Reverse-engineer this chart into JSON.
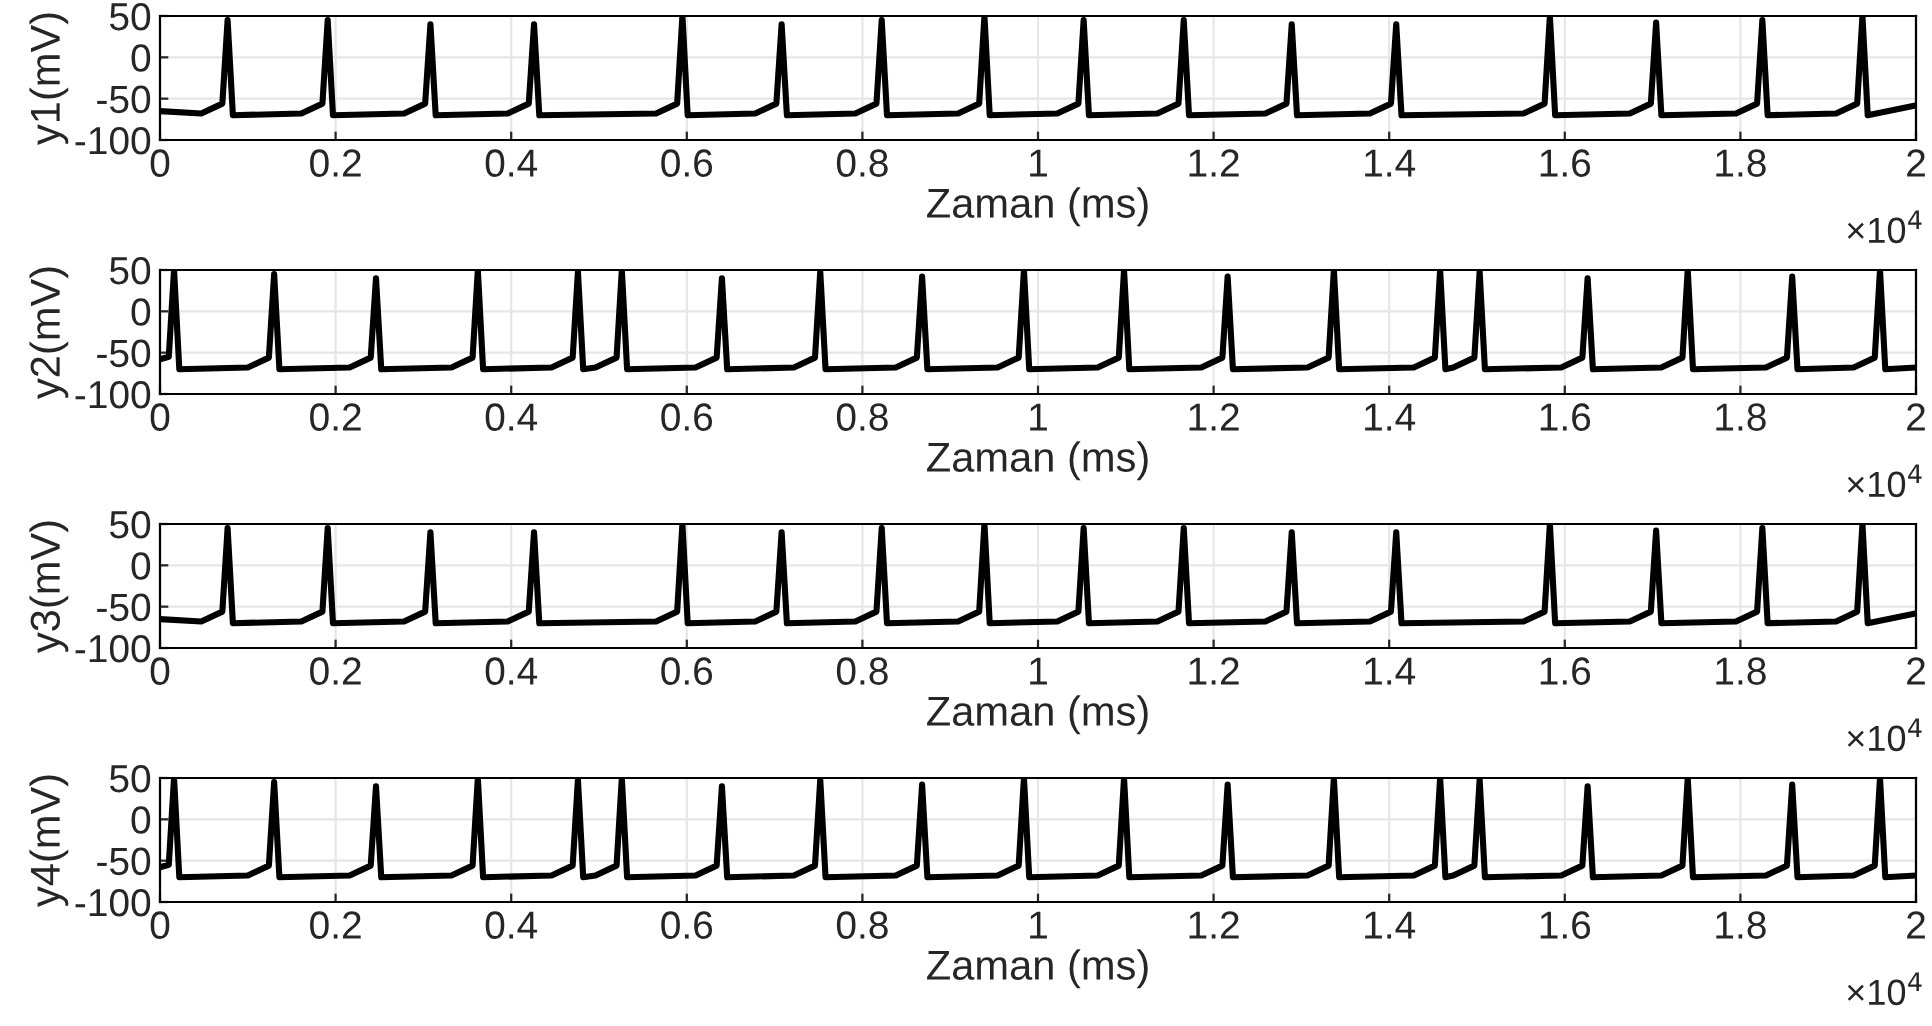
{
  "chart_data": [
    {
      "type": "line",
      "ylabel": "y1(mV)",
      "xlabel": "Zaman (ms)",
      "annotations": [
        "×10$^{4}$"
      ],
      "xlim": [
        0,
        2
      ],
      "ylim": [
        -100,
        50
      ],
      "yticks": [
        -100,
        -50,
        0,
        50
      ],
      "xticks": [
        0,
        0.2,
        0.4,
        0.6,
        0.8,
        1,
        1.2,
        1.4,
        1.6,
        1.8,
        2
      ],
      "grid": true,
      "series": [
        {
          "color": "#000000",
          "x": [
            0,
            0.047,
            0.071,
            0.077,
            0.083,
            0.161,
            0.185,
            0.191,
            0.197,
            0.278,
            0.302,
            0.308,
            0.314,
            0.396,
            0.42,
            0.426,
            0.432,
            0.565,
            0.589,
            0.595,
            0.601,
            0.678,
            0.702,
            0.708,
            0.714,
            0.792,
            0.816,
            0.822,
            0.828,
            0.909,
            0.933,
            0.939,
            0.945,
            1.022,
            1.046,
            1.052,
            1.058,
            1.136,
            1.16,
            1.166,
            1.172,
            1.259,
            1.283,
            1.289,
            1.295,
            1.378,
            1.402,
            1.408,
            1.414,
            1.553,
            1.577,
            1.583,
            1.589,
            1.674,
            1.698,
            1.704,
            1.71,
            1.795,
            1.819,
            1.825,
            1.831,
            1.909,
            1.933,
            1.939,
            1.945,
            2
          ],
          "values": [
            -65,
            -68,
            -56,
            45,
            -70,
            -68,
            -56,
            45,
            -70,
            -68,
            -56,
            40,
            -70,
            -68,
            -56,
            40,
            -70,
            -68,
            -56,
            50,
            -70,
            -68,
            -56,
            40,
            -70,
            -68,
            -56,
            45,
            -70,
            -68,
            -56,
            50,
            -70,
            -68,
            -56,
            45,
            -70,
            -68,
            -56,
            45,
            -70,
            -68,
            -56,
            40,
            -70,
            -68,
            -56,
            40,
            -70,
            -68,
            -56,
            50,
            -70,
            -68,
            -56,
            42,
            -70,
            -68,
            -56,
            45,
            -70,
            -68,
            -56,
            50,
            -70,
            -58
          ]
        }
      ]
    },
    {
      "type": "line",
      "ylabel": "y2(mV)",
      "xlabel": "Zaman (ms)",
      "annotations": [
        "×10$^{4}$"
      ],
      "xlim": [
        0,
        2
      ],
      "ylim": [
        -100,
        50
      ],
      "yticks": [
        -100,
        -50,
        0,
        50
      ],
      "xticks": [
        0,
        0.2,
        0.4,
        0.6,
        0.8,
        1,
        1.2,
        1.4,
        1.6,
        1.8,
        2
      ],
      "grid": true,
      "series": [
        {
          "color": "#000000",
          "x": [
            0,
            0.01,
            0.016,
            0.022,
            0.1,
            0.124,
            0.13,
            0.136,
            0.216,
            0.24,
            0.246,
            0.252,
            0.332,
            0.356,
            0.362,
            0.368,
            0.446,
            0.47,
            0.476,
            0.482,
            0.496,
            0.52,
            0.526,
            0.532,
            0.61,
            0.634,
            0.64,
            0.646,
            0.722,
            0.746,
            0.752,
            0.758,
            0.838,
            0.862,
            0.868,
            0.874,
            0.954,
            0.978,
            0.984,
            0.99,
            1.068,
            1.092,
            1.098,
            1.104,
            1.186,
            1.21,
            1.216,
            1.222,
            1.307,
            1.331,
            1.337,
            1.343,
            1.428,
            1.452,
            1.458,
            1.464,
            1.473,
            1.497,
            1.503,
            1.509,
            1.596,
            1.62,
            1.626,
            1.632,
            1.71,
            1.734,
            1.74,
            1.746,
            1.829,
            1.853,
            1.859,
            1.865,
            1.929,
            1.953,
            1.959,
            1.965,
            2
          ],
          "values": [
            -58,
            -55,
            50,
            -70,
            -68,
            -56,
            45,
            -70,
            -68,
            -56,
            40,
            -70,
            -68,
            -56,
            50,
            -70,
            -68,
            -56,
            48,
            -70,
            -68,
            -56,
            50,
            -70,
            -68,
            -56,
            40,
            -70,
            -68,
            -56,
            48,
            -70,
            -68,
            -56,
            42,
            -70,
            -68,
            -56,
            50,
            -70,
            -68,
            -56,
            50,
            -70,
            -68,
            -56,
            42,
            -70,
            -68,
            -56,
            50,
            -70,
            -68,
            -56,
            50,
            -70,
            -68,
            -56,
            48,
            -70,
            -68,
            -56,
            40,
            -70,
            -68,
            -56,
            50,
            -70,
            -68,
            -56,
            42,
            -70,
            -68,
            -56,
            50,
            -70,
            -68
          ]
        }
      ]
    },
    {
      "type": "line",
      "ylabel": "y3(mV)",
      "xlabel": "Zaman (ms)",
      "annotations": [
        "×10$^{4}$"
      ],
      "xlim": [
        0,
        2
      ],
      "ylim": [
        -100,
        50
      ],
      "yticks": [
        -100,
        -50,
        0,
        50
      ],
      "xticks": [
        0,
        0.2,
        0.4,
        0.6,
        0.8,
        1,
        1.2,
        1.4,
        1.6,
        1.8,
        2
      ],
      "grid": true,
      "series": [
        {
          "color": "#000000",
          "x": [
            0,
            0.047,
            0.071,
            0.077,
            0.083,
            0.161,
            0.185,
            0.191,
            0.197,
            0.278,
            0.302,
            0.308,
            0.314,
            0.396,
            0.42,
            0.426,
            0.432,
            0.565,
            0.589,
            0.595,
            0.601,
            0.678,
            0.702,
            0.708,
            0.714,
            0.792,
            0.816,
            0.822,
            0.828,
            0.909,
            0.933,
            0.939,
            0.945,
            1.022,
            1.046,
            1.052,
            1.058,
            1.136,
            1.16,
            1.166,
            1.172,
            1.259,
            1.283,
            1.289,
            1.295,
            1.378,
            1.402,
            1.408,
            1.414,
            1.553,
            1.577,
            1.583,
            1.589,
            1.674,
            1.698,
            1.704,
            1.71,
            1.795,
            1.819,
            1.825,
            1.831,
            1.909,
            1.933,
            1.939,
            1.945,
            2
          ],
          "values": [
            -65,
            -68,
            -56,
            45,
            -70,
            -68,
            -56,
            45,
            -70,
            -68,
            -56,
            40,
            -70,
            -68,
            -56,
            40,
            -70,
            -68,
            -56,
            50,
            -70,
            -68,
            -56,
            40,
            -70,
            -68,
            -56,
            45,
            -70,
            -68,
            -56,
            50,
            -70,
            -68,
            -56,
            45,
            -70,
            -68,
            -56,
            45,
            -70,
            -68,
            -56,
            40,
            -70,
            -68,
            -56,
            40,
            -70,
            -68,
            -56,
            50,
            -70,
            -68,
            -56,
            42,
            -70,
            -68,
            -56,
            45,
            -70,
            -68,
            -56,
            50,
            -70,
            -58
          ]
        }
      ]
    },
    {
      "type": "line",
      "ylabel": "y4(mV)",
      "xlabel": "Zaman (ms)",
      "annotations": [
        "×10$^{4}$"
      ],
      "xlim": [
        0,
        2
      ],
      "ylim": [
        -100,
        50
      ],
      "yticks": [
        -100,
        -50,
        0,
        50
      ],
      "xticks": [
        0,
        0.2,
        0.4,
        0.6,
        0.8,
        1,
        1.2,
        1.4,
        1.6,
        1.8,
        2
      ],
      "grid": true,
      "series": [
        {
          "color": "#000000",
          "x": [
            0,
            0.01,
            0.016,
            0.022,
            0.1,
            0.124,
            0.13,
            0.136,
            0.216,
            0.24,
            0.246,
            0.252,
            0.332,
            0.356,
            0.362,
            0.368,
            0.446,
            0.47,
            0.476,
            0.482,
            0.496,
            0.52,
            0.526,
            0.532,
            0.61,
            0.634,
            0.64,
            0.646,
            0.722,
            0.746,
            0.752,
            0.758,
            0.838,
            0.862,
            0.868,
            0.874,
            0.954,
            0.978,
            0.984,
            0.99,
            1.068,
            1.092,
            1.098,
            1.104,
            1.186,
            1.21,
            1.216,
            1.222,
            1.307,
            1.331,
            1.337,
            1.343,
            1.428,
            1.452,
            1.458,
            1.464,
            1.473,
            1.497,
            1.503,
            1.509,
            1.596,
            1.62,
            1.626,
            1.632,
            1.71,
            1.734,
            1.74,
            1.746,
            1.829,
            1.853,
            1.859,
            1.865,
            1.929,
            1.953,
            1.959,
            1.965,
            2
          ],
          "values": [
            -58,
            -55,
            50,
            -70,
            -68,
            -56,
            45,
            -70,
            -68,
            -56,
            40,
            -70,
            -68,
            -56,
            50,
            -70,
            -68,
            -56,
            48,
            -70,
            -68,
            -56,
            50,
            -70,
            -68,
            -56,
            40,
            -70,
            -68,
            -56,
            48,
            -70,
            -68,
            -56,
            42,
            -70,
            -68,
            -56,
            50,
            -70,
            -68,
            -56,
            50,
            -70,
            -68,
            -56,
            42,
            -70,
            -68,
            -56,
            50,
            -70,
            -68,
            -56,
            50,
            -70,
            -68,
            -56,
            48,
            -70,
            -68,
            -56,
            40,
            -70,
            -68,
            -56,
            50,
            -70,
            -68,
            -56,
            42,
            -70,
            -68,
            -56,
            50,
            -70,
            -68
          ]
        }
      ]
    }
  ]
}
